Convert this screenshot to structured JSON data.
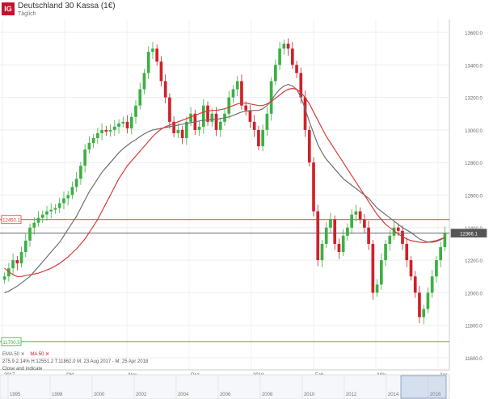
{
  "header": {
    "logo": "IG",
    "title": "Deutschland 30 Kassa (1€)",
    "subtitle": "Täglich"
  },
  "legend": {
    "line1": [
      "EMA 50 ✕",
      "MA 50 ✕"
    ],
    "line2": "275.9 2.14% H:12551.2 T:11862.0 M: 23 Aug 2017 - M: 25 Apr 2018",
    "line3": "Close and indicate"
  },
  "colors": {
    "up": "#3cb043",
    "down": "#d0202a",
    "ema": "#6f6f6f",
    "ma": "#d93a3a",
    "resistance": "#d93a3a",
    "support": "#3cb043",
    "price_line": "#666666"
  },
  "chart_data": {
    "type": "candlestick",
    "y_axis": {
      "min": 11600,
      "max": 13600,
      "ticks": [
        11600,
        11800,
        12000,
        12200,
        12400,
        12600,
        12800,
        13000,
        13200,
        13400,
        13600
      ]
    },
    "x_axis": {
      "labels": [
        "2017",
        "Okt",
        "Nov",
        "Dez",
        "2018",
        "Feb",
        "Mär",
        "Apr"
      ]
    },
    "navigator_labels": [
      "1995",
      "1998",
      "2000",
      "2002",
      "2004",
      "2006",
      "2008",
      "2010",
      "2012",
      "2014",
      "2016"
    ],
    "horizontal_lines": [
      {
        "name": "resistance",
        "value": 12450,
        "label": "12450.1"
      },
      {
        "name": "current",
        "value": 12366.1,
        "label": "12366.1"
      },
      {
        "name": "support",
        "value": 11700,
        "label": "11700.5"
      }
    ],
    "closes": [
      12100,
      12150,
      12200,
      12180,
      12250,
      12320,
      12400,
      12430,
      12460,
      12480,
      12500,
      12510,
      12520,
      12550,
      12580,
      12600,
      12650,
      12700,
      12780,
      12880,
      12920,
      12950,
      12980,
      13000,
      12990,
      13000,
      13020,
      13040,
      13050,
      13010,
      13080,
      13150,
      13250,
      13350,
      13480,
      13500,
      13420,
      13300,
      13200,
      13050,
      12980,
      13000,
      12950,
      13050,
      13100,
      13000,
      13020,
      13150,
      13050,
      13100,
      13000,
      13050,
      13100,
      13200,
      13250,
      13300,
      13150,
      13120,
      13050,
      13000,
      12900,
      13000,
      13100,
      13300,
      13400,
      13500,
      13530,
      13500,
      13400,
      13350,
      13200,
      13000,
      12800,
      12500,
      12200,
      12300,
      12400,
      12450,
      12300,
      12250,
      12350,
      12400,
      12480,
      12500,
      12450,
      12400,
      12300,
      12000,
      12050,
      12200,
      12300,
      12350,
      12400,
      12380,
      12300,
      12200,
      12100,
      12000,
      11850,
      11900,
      12000,
      12100,
      12200,
      12280,
      12366
    ],
    "ema50": [
      12000,
      12010,
      12025,
      12040,
      12060,
      12080,
      12100,
      12130,
      12160,
      12190,
      12220,
      12250,
      12280,
      12310,
      12350,
      12390,
      12430,
      12470,
      12520,
      12570,
      12620,
      12660,
      12700,
      12740,
      12770,
      12800,
      12830,
      12860,
      12885,
      12905,
      12925,
      12940,
      12960,
      12975,
      12990,
      13000,
      13005,
      13010,
      13015,
      13020,
      13025,
      13030,
      13035,
      13040,
      13045,
      13050,
      13055,
      13060,
      13060,
      13065,
      13065,
      13070,
      13075,
      13080,
      13090,
      13100,
      13110,
      13115,
      13118,
      13120,
      13120,
      13130,
      13150,
      13180,
      13220,
      13250,
      13270,
      13280,
      13270,
      13250,
      13200,
      13130,
      13050,
      12980,
      12910,
      12860,
      12820,
      12790,
      12760,
      12730,
      12700,
      12680,
      12660,
      12640,
      12620,
      12600,
      12580,
      12550,
      12520,
      12500,
      12480,
      12460,
      12440,
      12420,
      12400,
      12385,
      12370,
      12350,
      12330,
      12320,
      12310,
      12310,
      12315,
      12325,
      12340
    ],
    "ma50": [
      12150,
      12130,
      12110,
      12100,
      12100,
      12105,
      12110,
      12115,
      12120,
      12130,
      12140,
      12150,
      12165,
      12180,
      12200,
      12220,
      12245,
      12270,
      12300,
      12330,
      12370,
      12410,
      12450,
      12500,
      12550,
      12600,
      12650,
      12700,
      12740,
      12780,
      12810,
      12840,
      12870,
      12900,
      12930,
      12960,
      12985,
      13005,
      13020,
      13030,
      13040,
      13050,
      13060,
      13070,
      13080,
      13090,
      13100,
      13110,
      13115,
      13120,
      13120,
      13125,
      13130,
      13140,
      13150,
      13160,
      13165,
      13165,
      13160,
      13155,
      13150,
      13150,
      13160,
      13175,
      13195,
      13215,
      13235,
      13250,
      13255,
      13250,
      13230,
      13200,
      13160,
      13110,
      13060,
      13010,
      12960,
      12920,
      12880,
      12840,
      12800,
      12760,
      12720,
      12680,
      12640,
      12600,
      12560,
      12520,
      12480,
      12450,
      12420,
      12400,
      12380,
      12360,
      12345,
      12330,
      12320,
      12315,
      12310,
      12308,
      12310,
      12315,
      12320,
      12330,
      12340
    ]
  }
}
